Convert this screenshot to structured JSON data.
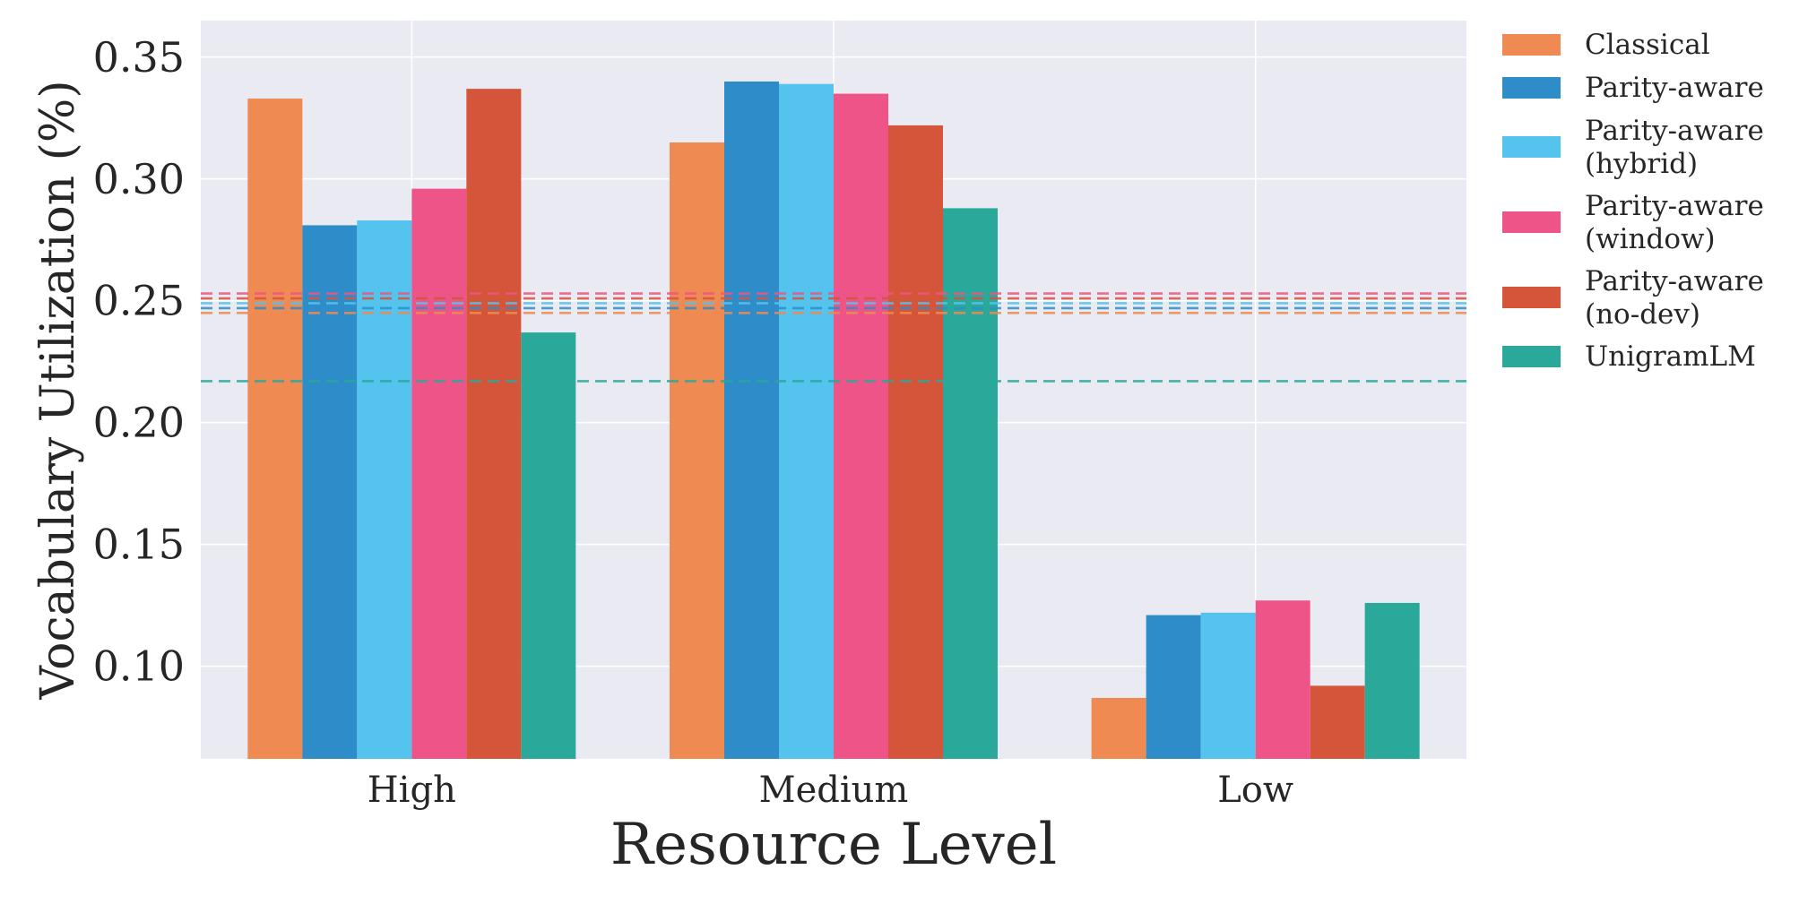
{
  "chart_data": {
    "type": "bar",
    "title": "",
    "xlabel": "Resource Level",
    "ylabel": "Vocabulary Utilization (%)",
    "categories": [
      "High",
      "Medium",
      "Low"
    ],
    "ylim": [
      0.062,
      0.365
    ],
    "yticks": [
      "0.10",
      "0.15",
      "0.20",
      "0.25",
      "0.30",
      "0.35"
    ],
    "grid": true,
    "legend_position": "right, outside plot",
    "series": [
      {
        "name": "Classical",
        "legend_lines": [
          "Classical"
        ],
        "color": "#ee8a52",
        "values": [
          0.333,
          0.315,
          0.087
        ],
        "mean_line": 0.245
      },
      {
        "name": "Parity-aware",
        "legend_lines": [
          "Parity-aware"
        ],
        "color": "#2e8dc8",
        "values": [
          0.281,
          0.34,
          0.121
        ],
        "mean_line": 0.247
      },
      {
        "name": "Parity-aware (hybrid)",
        "legend_lines": [
          "Parity-aware",
          "(hybrid)"
        ],
        "color": "#54c3ee",
        "values": [
          0.283,
          0.339,
          0.122
        ],
        "mean_line": 0.249
      },
      {
        "name": "Parity-aware (window)",
        "legend_lines": [
          "Parity-aware",
          "(window)"
        ],
        "color": "#ef5488",
        "values": [
          0.296,
          0.335,
          0.127
        ],
        "mean_line": 0.253
      },
      {
        "name": "Parity-aware (no-dev)",
        "legend_lines": [
          "Parity-aware",
          "(no-dev)"
        ],
        "color": "#d5553a",
        "values": [
          0.337,
          0.322,
          0.092
        ],
        "mean_line": 0.251
      },
      {
        "name": "UnigramLM",
        "legend_lines": [
          "UnigramLM"
        ],
        "color": "#2aa89a",
        "values": [
          0.237,
          0.288,
          0.126
        ],
        "mean_line": 0.217
      }
    ]
  }
}
